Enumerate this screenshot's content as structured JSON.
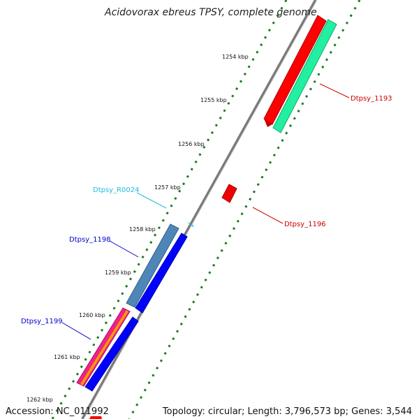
{
  "title": "Acidovorax ebreus TPSY, complete genome",
  "ticks": [
    "1254 kbp",
    "1255 kbp",
    "1256 kbp",
    "1257 kbp",
    "1258 kbp",
    "1259 kbp",
    "1260 kbp",
    "1261 kbp",
    "1262 kbp"
  ],
  "genes": {
    "dtpsy_1193": {
      "label": "Dtpsy_1193",
      "color": "#cc0000"
    },
    "dtpsy_1196": {
      "label": "Dtpsy_1196",
      "color": "#cc0000"
    },
    "dtpsy_r0024": {
      "label": "Dtpsy_R0024",
      "color": "#22bbdd"
    },
    "dtpsy_1198": {
      "label": "Dtpsy_1198",
      "color": "#0000cc"
    },
    "dtpsy_1199": {
      "label": "Dtpsy_1199",
      "color": "#0000cc"
    }
  },
  "footer": {
    "accession": "Accession: NC_011992",
    "topology": "Topology: circular; Length: 3,796,573 bp; Genes: 3,544"
  },
  "colors": {
    "backbone": "#808080",
    "dotted_track": "#1a7a1a",
    "red_feature": "#ff0000",
    "teal_feature": "#22f0a0",
    "steel_feature": "#4f86b8",
    "blue_feature": "#0000ff",
    "pink_feature": "#ee2288",
    "orange_feature": "#ff9900",
    "cyan_feature": "#22bbee"
  }
}
